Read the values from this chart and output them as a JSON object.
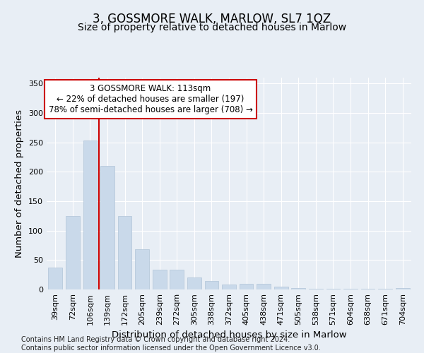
{
  "title": "3, GOSSMORE WALK, MARLOW, SL7 1QZ",
  "subtitle": "Size of property relative to detached houses in Marlow",
  "xlabel": "Distribution of detached houses by size in Marlow",
  "ylabel": "Number of detached properties",
  "categories": [
    "39sqm",
    "72sqm",
    "106sqm",
    "139sqm",
    "172sqm",
    "205sqm",
    "239sqm",
    "272sqm",
    "305sqm",
    "338sqm",
    "372sqm",
    "405sqm",
    "438sqm",
    "471sqm",
    "505sqm",
    "538sqm",
    "571sqm",
    "604sqm",
    "638sqm",
    "671sqm",
    "704sqm"
  ],
  "values": [
    37,
    125,
    253,
    210,
    125,
    68,
    34,
    34,
    20,
    15,
    8,
    10,
    10,
    5,
    3,
    1,
    1,
    1,
    1,
    1,
    3
  ],
  "bar_color": "#c9d9ea",
  "bar_edge_color": "#b0c4d8",
  "vline_x": 2.5,
  "vline_color": "#cc0000",
  "annotation_text": "3 GOSSMORE WALK: 113sqm\n← 22% of detached houses are smaller (197)\n78% of semi-detached houses are larger (708) →",
  "annotation_box_facecolor": "#ffffff",
  "annotation_box_edgecolor": "#cc0000",
  "ylim": [
    0,
    360
  ],
  "yticks": [
    0,
    50,
    100,
    150,
    200,
    250,
    300,
    350
  ],
  "bg_color": "#e8eef5",
  "grid_color": "#ffffff",
  "footer": "Contains HM Land Registry data © Crown copyright and database right 2024.\nContains public sector information licensed under the Open Government Licence v3.0.",
  "title_fontsize": 12,
  "subtitle_fontsize": 10,
  "axis_label_fontsize": 9.5,
  "tick_fontsize": 8,
  "annotation_fontsize": 8.5,
  "footer_fontsize": 7
}
